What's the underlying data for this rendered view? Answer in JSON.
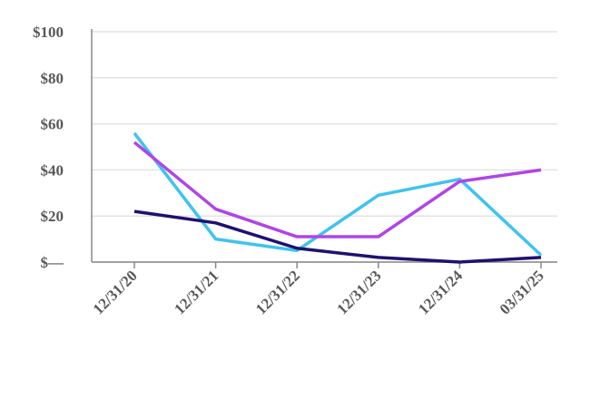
{
  "chart_data": {
    "type": "line",
    "categories": [
      "12/31/20",
      "12/31/21",
      "12/31/22",
      "12/31/23",
      "12/31/24",
      "03/31/25"
    ],
    "series": [
      {
        "color": "#3ec3f0",
        "values": [
          56,
          10,
          5,
          29,
          36,
          3
        ]
      },
      {
        "color": "#b044e8",
        "values": [
          52,
          23,
          11,
          11,
          35,
          40
        ]
      },
      {
        "color": "#1e1170",
        "values": [
          22,
          17,
          6,
          2,
          0,
          2
        ]
      }
    ],
    "ylim": [
      0,
      100
    ],
    "yticks": [
      {
        "value": 0,
        "label": "$—"
      },
      {
        "value": 20,
        "label": "$20"
      },
      {
        "value": 40,
        "label": "$40"
      },
      {
        "value": 60,
        "label": "$60"
      },
      {
        "value": 80,
        "label": "$80"
      },
      {
        "value": 100,
        "label": "$100"
      }
    ],
    "grid": true
  }
}
